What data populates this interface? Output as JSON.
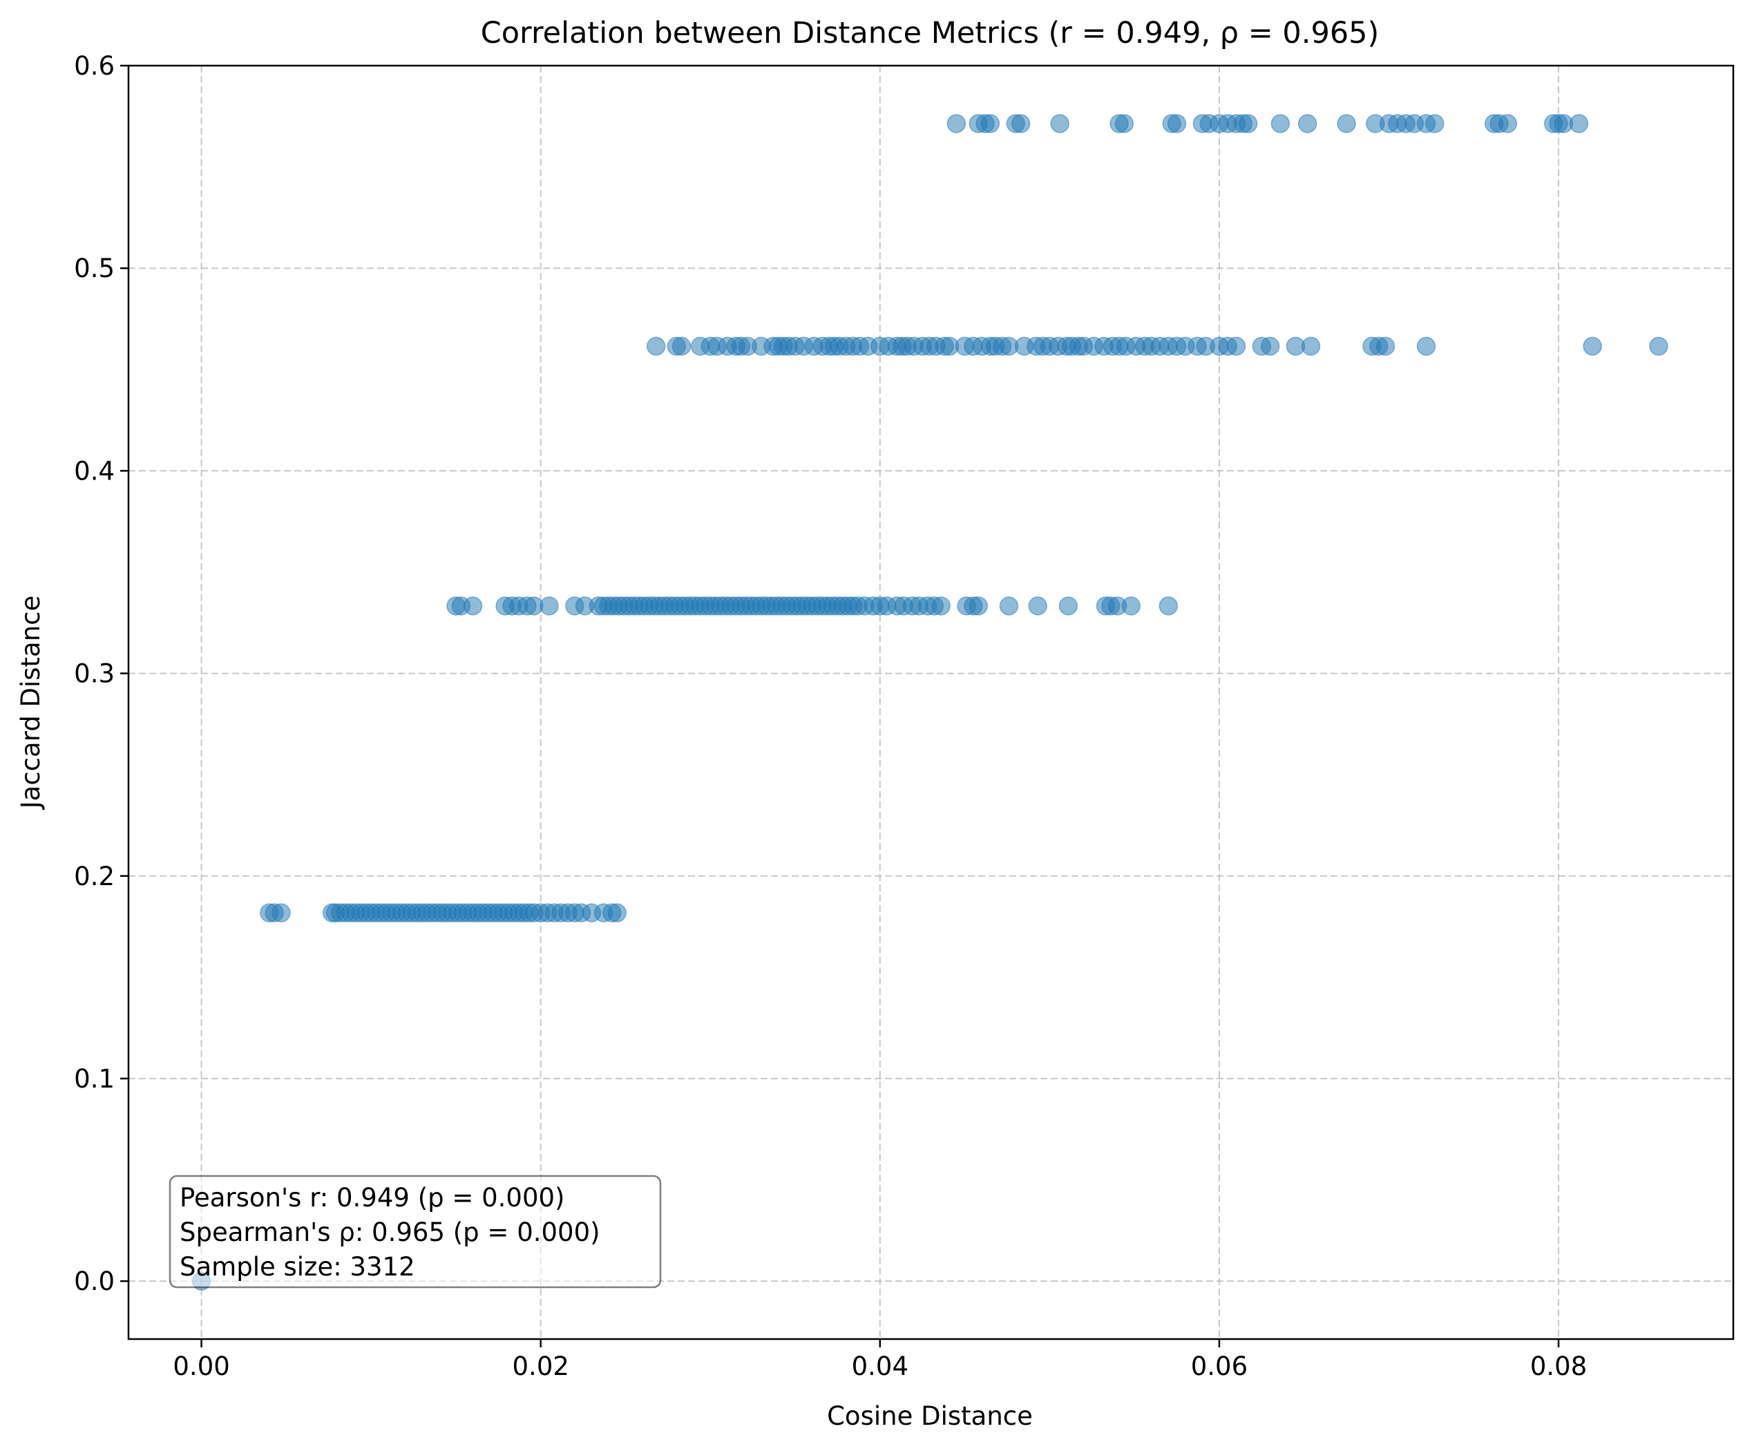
{
  "chart_data": {
    "type": "scatter",
    "title": "Correlation between Distance Metrics (r = 0.949, ρ = 0.965)",
    "xlabel": "Cosine Distance",
    "ylabel": "Jaccard Distance",
    "xlim": [
      -0.0043,
      0.0903
    ],
    "ylim": [
      -0.0286,
      0.6
    ],
    "xticks": [
      {
        "value": 0.0,
        "label": "0.00"
      },
      {
        "value": 0.02,
        "label": "0.02"
      },
      {
        "value": 0.04,
        "label": "0.04"
      },
      {
        "value": 0.06,
        "label": "0.06"
      },
      {
        "value": 0.08,
        "label": "0.08"
      }
    ],
    "yticks": [
      {
        "value": 0.0,
        "label": "0.0"
      },
      {
        "value": 0.1,
        "label": "0.1"
      },
      {
        "value": 0.2,
        "label": "0.2"
      },
      {
        "value": 0.3,
        "label": "0.3"
      },
      {
        "value": 0.4,
        "label": "0.4"
      },
      {
        "value": 0.5,
        "label": "0.5"
      },
      {
        "value": 0.6,
        "label": "0.6"
      }
    ],
    "grid": true,
    "marker_color": "#1f77b4",
    "marker_alpha": 0.5,
    "annotation": {
      "placement": "bottom-left",
      "lines": [
        "Pearson's r: 0.949 (p = 0.000)",
        "Spearman's ρ: 0.965 (p = 0.000)",
        "Sample size: 3312"
      ]
    },
    "series": [
      {
        "values": [
          {
            "y": 0.0,
            "x": [
              0.0
            ]
          },
          {
            "y": 0.1818,
            "x": [
              0.004,
              0.0043,
              0.0047,
              0.0077,
              0.0079,
              0.0082,
              0.0085,
              0.0088,
              0.0091,
              0.0094,
              0.0097,
              0.01,
              0.0103,
              0.0106,
              0.0109,
              0.0112,
              0.0115,
              0.0118,
              0.0121,
              0.0124,
              0.0127,
              0.013,
              0.0133,
              0.0136,
              0.0139,
              0.0142,
              0.0145,
              0.0148,
              0.0151,
              0.0154,
              0.0157,
              0.016,
              0.0163,
              0.0166,
              0.0169,
              0.0172,
              0.0175,
              0.0178,
              0.0181,
              0.0184,
              0.0187,
              0.019,
              0.0193,
              0.0196,
              0.02,
              0.0204,
              0.0208,
              0.0212,
              0.0216,
              0.022,
              0.0224,
              0.023,
              0.0237,
              0.0242,
              0.0245
            ]
          },
          {
            "y": 0.3333,
            "x": [
              0.015,
              0.0153,
              0.016,
              0.0179,
              0.0183,
              0.0187,
              0.0192,
              0.0196,
              0.0205,
              0.022,
              0.0226,
              0.0234,
              0.0237,
              0.024,
              0.0243,
              0.0246,
              0.0249,
              0.0252,
              0.0255,
              0.0258,
              0.0261,
              0.0264,
              0.0267,
              0.027,
              0.0273,
              0.0276,
              0.0279,
              0.0282,
              0.0285,
              0.0288,
              0.0291,
              0.0294,
              0.0297,
              0.03,
              0.0303,
              0.0306,
              0.0309,
              0.0312,
              0.0315,
              0.0318,
              0.0321,
              0.0324,
              0.0327,
              0.033,
              0.0333,
              0.0336,
              0.0339,
              0.0342,
              0.0345,
              0.0348,
              0.0351,
              0.0354,
              0.0357,
              0.036,
              0.0363,
              0.0366,
              0.0369,
              0.0372,
              0.0375,
              0.0378,
              0.0381,
              0.0384,
              0.0387,
              0.0391,
              0.0396,
              0.04,
              0.0404,
              0.041,
              0.0414,
              0.0419,
              0.0423,
              0.0428,
              0.0432,
              0.0436,
              0.0451,
              0.0455,
              0.0458,
              0.0476,
              0.0493,
              0.0511,
              0.0533,
              0.0536,
              0.054,
              0.0548,
              0.057
            ]
          },
          {
            "y": 0.4615,
            "x": [
              0.0268,
              0.028,
              0.0283,
              0.0294,
              0.03,
              0.0304,
              0.031,
              0.0315,
              0.0318,
              0.0322,
              0.033,
              0.0337,
              0.034,
              0.0343,
              0.0346,
              0.035,
              0.0355,
              0.0361,
              0.0366,
              0.037,
              0.0373,
              0.0376,
              0.038,
              0.0384,
              0.0388,
              0.0393,
              0.04,
              0.0405,
              0.041,
              0.0413,
              0.0416,
              0.042,
              0.0425,
              0.0429,
              0.0433,
              0.0438,
              0.0441,
              0.045,
              0.0455,
              0.046,
              0.0465,
              0.0468,
              0.0472,
              0.0476,
              0.0485,
              0.0492,
              0.0496,
              0.05,
              0.0505,
              0.051,
              0.0513,
              0.0517,
              0.052,
              0.0526,
              0.0532,
              0.0537,
              0.0541,
              0.0545,
              0.0551,
              0.0556,
              0.056,
              0.0565,
              0.057,
              0.0575,
              0.058,
              0.0587,
              0.0592,
              0.06,
              0.0605,
              0.061,
              0.0625,
              0.063,
              0.0645,
              0.0654,
              0.069,
              0.0694,
              0.0698,
              0.0722,
              0.082,
              0.0859
            ]
          },
          {
            "y": 0.5714,
            "x": [
              0.0445,
              0.0458,
              0.0462,
              0.0465,
              0.048,
              0.0483,
              0.0506,
              0.0541,
              0.0544,
              0.0572,
              0.0575,
              0.059,
              0.0594,
              0.06,
              0.0605,
              0.061,
              0.0614,
              0.0617,
              0.0636,
              0.0652,
              0.0675,
              0.0692,
              0.07,
              0.0705,
              0.071,
              0.0715,
              0.0722,
              0.0727,
              0.0762,
              0.0765,
              0.077,
              0.0797,
              0.08,
              0.0803,
              0.0812
            ]
          }
        ]
      }
    ]
  }
}
